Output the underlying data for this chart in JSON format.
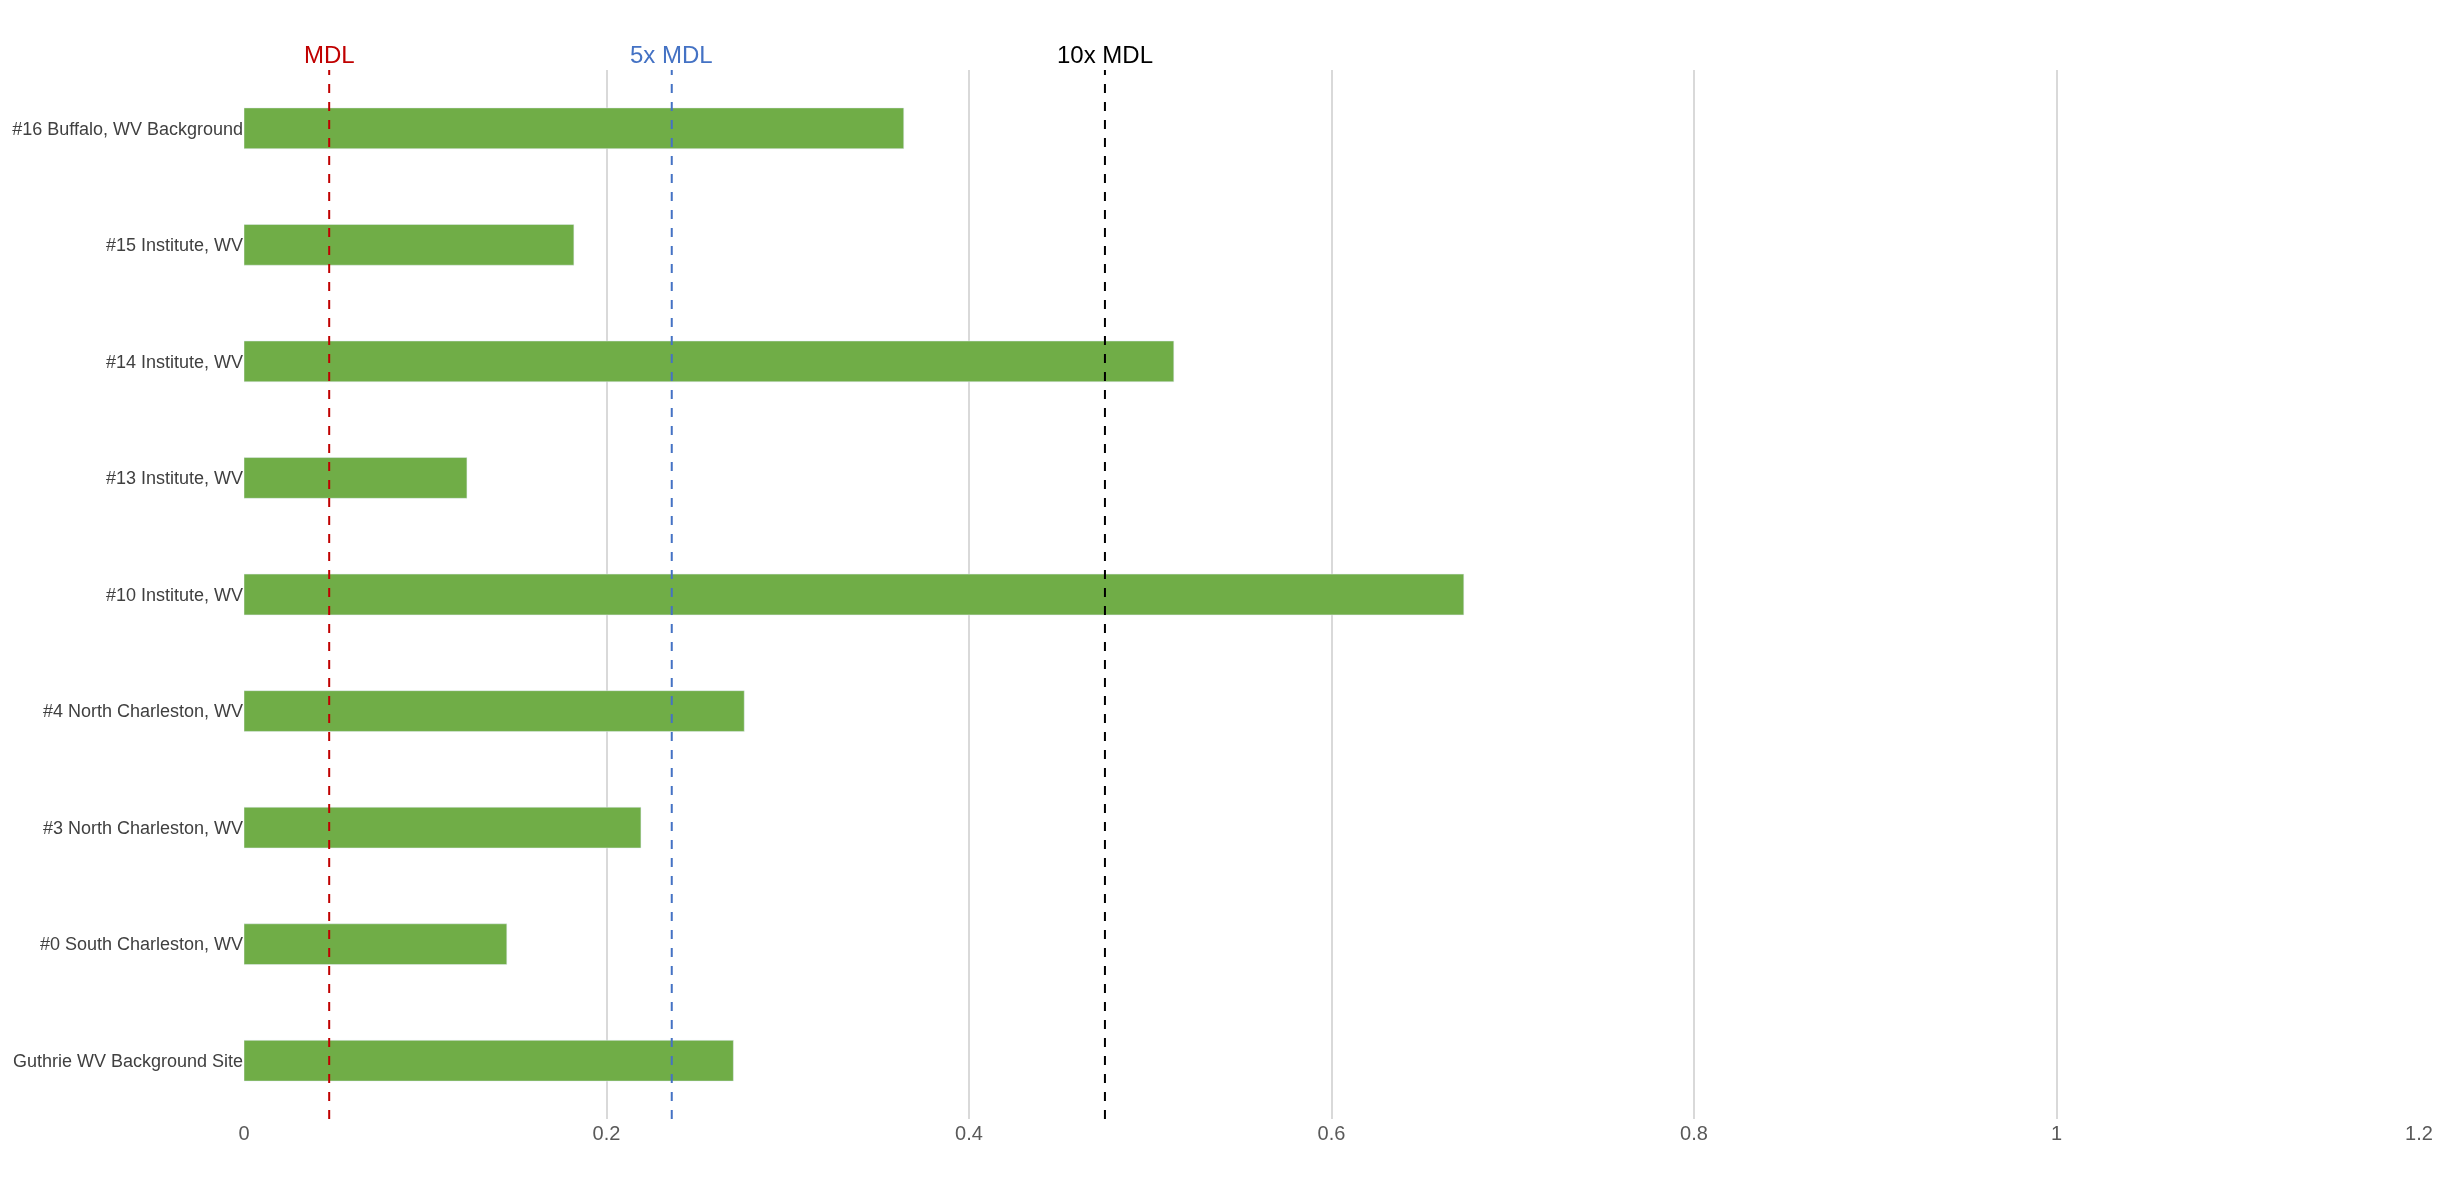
{
  "chart_data": {
    "type": "bar",
    "orientation": "horizontal",
    "categories": [
      "#16 Buffalo, WV Background",
      "#15 Institute, WV",
      "#14 Institute, WV",
      "#13 Institute, WV",
      "#10 Institute, WV",
      "#4 North Charleston, WV",
      "#3 North Charleston, WV",
      "#0 South Charleston, WV",
      "Guthrie WV Background Site"
    ],
    "values": [
      0.364,
      0.182,
      0.513,
      0.123,
      0.673,
      0.276,
      0.219,
      0.145,
      0.27
    ],
    "color": "#70ad47",
    "xlim": [
      0,
      1.2
    ],
    "xticks": [
      0,
      0.2,
      0.4,
      0.6,
      0.8,
      1,
      1.2
    ],
    "grid": "x",
    "ref_lines": [
      {
        "axis": "x",
        "value": 0.047,
        "label": "MDL",
        "color": "#c00000",
        "line_style": "dashed"
      },
      {
        "axis": "x",
        "value": 0.236,
        "label": "5x MDL",
        "color": "#4472c4",
        "line_style": "dashed"
      },
      {
        "axis": "x",
        "value": 0.475,
        "label": "10x MDL",
        "color": "#000000",
        "line_style": "dashed"
      }
    ]
  }
}
